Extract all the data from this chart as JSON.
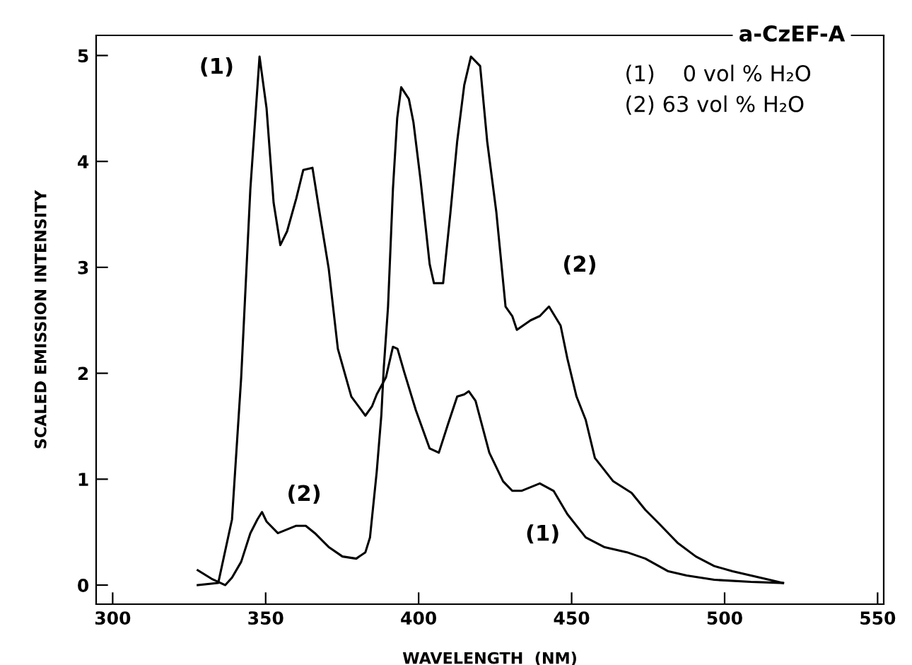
{
  "chart_data": {
    "type": "line",
    "title": "a-CzEF-A",
    "xlabel": "WAVELENGTH  (NM)",
    "ylabel": "SCALED EMISSION INTENSITY",
    "xlim": [
      294.6,
      552
    ],
    "ylim": [
      -0.18,
      5.19
    ],
    "xticks": [
      300,
      350,
      400,
      450,
      500,
      550
    ],
    "yticks": [
      0,
      1,
      2,
      3,
      4,
      5
    ],
    "grid": false,
    "marker": "none",
    "line_style": "solid",
    "annotations": [
      "(1)    0 vol % H₂O",
      "(2) 63 vol % H₂O",
      "(1)",
      "(2)",
      "(2)",
      "(1)"
    ],
    "series": [
      {
        "color": "#000000",
        "x": [
          327.8,
          334.5,
          339,
          342,
          345,
          348,
          350.3,
          352.6,
          354.8,
          357,
          360,
          362.3,
          365.3,
          367.6,
          370.6,
          373.6,
          378,
          382.6,
          384.8,
          386.3,
          389.3,
          391.6,
          393.1,
          395.3,
          399.1,
          403.6,
          406.6,
          409.6,
          412.6,
          414.9,
          416.4,
          418.6,
          423.1,
          427.6,
          430.6,
          433.6,
          439.6,
          444.1,
          448.6,
          454.6,
          460.6,
          468.1,
          474.1,
          481.6,
          487.6,
          496.6,
          508.6,
          519.1
        ],
        "values": [
          0.0,
          0.02,
          0.62,
          1.96,
          3.74,
          4.99,
          4.5,
          3.61,
          3.21,
          3.34,
          3.65,
          3.92,
          3.94,
          3.52,
          2.99,
          2.23,
          1.78,
          1.6,
          1.69,
          1.8,
          1.96,
          2.25,
          2.23,
          2.01,
          1.65,
          1.29,
          1.25,
          1.52,
          1.78,
          1.8,
          1.83,
          1.74,
          1.25,
          0.98,
          0.89,
          0.89,
          0.96,
          0.89,
          0.67,
          0.45,
          0.36,
          0.31,
          0.25,
          0.13,
          0.09,
          0.05,
          0.03,
          0.02
        ]
      },
      {
        "color": "#000000",
        "x": [
          327.8,
          332.3,
          336.8,
          339,
          342,
          345,
          347.3,
          348.8,
          350.3,
          354,
          360,
          363.1,
          366.1,
          370.6,
          375.1,
          379.6,
          382.6,
          384.1,
          386.3,
          387.8,
          388.6,
          390,
          391.6,
          393,
          394.3,
          396.8,
          398.3,
          400.6,
          403.6,
          405,
          408,
          410.4,
          412.6,
          414.9,
          417.1,
          420.1,
          422.4,
          425.4,
          428.4,
          430.6,
          432.1,
          436.6,
          439.6,
          442.6,
          446.4,
          448.6,
          451.6,
          454.6,
          457.6,
          463.6,
          469.6,
          474.1,
          478.6,
          484.6,
          490.6,
          496.6,
          502.6,
          508.6,
          514.6,
          519.1
        ],
        "values": [
          0.14,
          0.06,
          0.0,
          0.07,
          0.22,
          0.49,
          0.62,
          0.69,
          0.6,
          0.49,
          0.56,
          0.56,
          0.49,
          0.36,
          0.27,
          0.25,
          0.31,
          0.45,
          1.07,
          1.6,
          2.05,
          2.63,
          3.74,
          4.41,
          4.7,
          4.59,
          4.37,
          3.83,
          3.03,
          2.85,
          2.85,
          3.52,
          4.19,
          4.72,
          4.99,
          4.9,
          4.19,
          3.52,
          2.63,
          2.54,
          2.41,
          2.5,
          2.54,
          2.63,
          2.45,
          2.14,
          1.78,
          1.56,
          1.2,
          0.98,
          0.87,
          0.71,
          0.58,
          0.4,
          0.27,
          0.18,
          0.13,
          0.09,
          0.05,
          0.02
        ]
      }
    ]
  }
}
